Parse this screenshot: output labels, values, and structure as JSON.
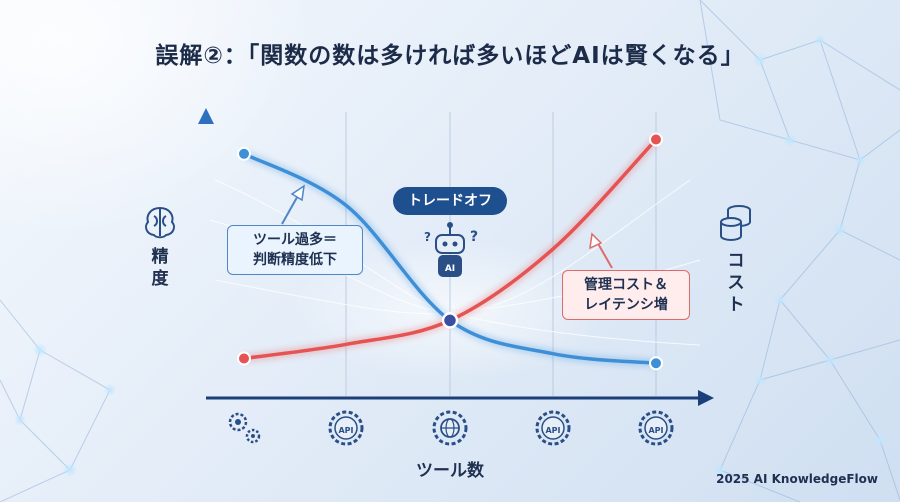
{
  "title": "誤解②：「関数の数は多ければ多いほどAIは賢くなる」",
  "footer": "2025 AI KnowledgeFlow",
  "callouts": {
    "left": [
      "ツール過多＝",
      "判断精度低下"
    ],
    "right": [
      "管理コスト＆",
      "レイテンシ増"
    ],
    "center": "トレードオフ"
  },
  "robot_label": "AI",
  "x_icon_labels": [
    "API",
    "API",
    "API",
    "API"
  ],
  "icons": {
    "y_axis": "brain-icon",
    "cost_axis": "coins-icon",
    "robot": "robot-icon",
    "x_axis": [
      "gears-icon",
      "api-gear-icon",
      "globe-gear-icon",
      "api-gear-icon",
      "api-gear-icon"
    ]
  },
  "colors": {
    "accuracy": "#3d8fd8",
    "cost": "#e55353",
    "intersection": "#3b4fa0"
  },
  "chart_data": {
    "type": "line",
    "title": "誤解②：「関数の数は多ければ多いほどAIは賢くなる」",
    "xlabel": "ツール数",
    "ylabel": "精度",
    "y2label": "コスト",
    "x": [
      0,
      1,
      2,
      3,
      4
    ],
    "series": [
      {
        "name": "精度",
        "values": [
          0.9,
          0.68,
          0.2,
          0.06,
          0.02
        ]
      },
      {
        "name": "コスト",
        "values": [
          0.04,
          0.1,
          0.2,
          0.5,
          0.96
        ]
      }
    ],
    "ylim": [
      0,
      1
    ],
    "tick_labels_shown": false,
    "grid": "vertical",
    "annotations": [
      "ツール過多＝判断精度低下",
      "管理コスト＆レイテンシ増",
      "トレードオフ"
    ]
  }
}
